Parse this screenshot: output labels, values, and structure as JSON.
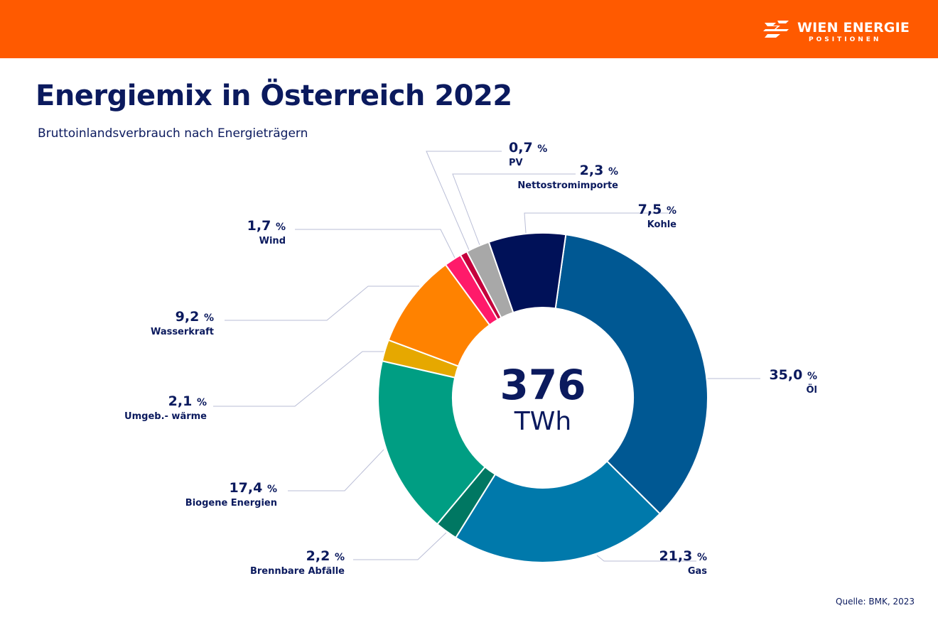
{
  "header": {
    "brand": "WIEN ENERGIE",
    "brand_sub": "POSITIONEN",
    "color": "#ff5a00"
  },
  "title": "Energiemix in Österreich 2022",
  "subtitle": "Bruttoinlandsverbrauch nach Energieträgern",
  "source": "Quelle: BMK, 2023",
  "chart_data": {
    "type": "pie",
    "donut": true,
    "title": "Energiemix in Österreich 2022",
    "center_value": "376",
    "center_unit": "TWh",
    "unit": "%",
    "slices": [
      {
        "name": "Öl",
        "value": 35.0,
        "label": "35,0",
        "color": "#005893"
      },
      {
        "name": "Gas",
        "value": 21.3,
        "label": "21,3",
        "color": "#0079ab"
      },
      {
        "name": "Brennbare Abfälle",
        "value": 2.2,
        "label": "2,2",
        "color": "#007762"
      },
      {
        "name": "Biogene Energien",
        "value": 17.4,
        "label": "17,4",
        "color": "#009e83"
      },
      {
        "name": "Umgeb.- wärme",
        "value": 2.1,
        "label": "2,1",
        "color": "#e6a800"
      },
      {
        "name": "Wasserkraft",
        "value": 9.2,
        "label": "9,2",
        "color": "#ff8200"
      },
      {
        "name": "Wind",
        "value": 1.7,
        "label": "1,7",
        "color": "#ff1a6a"
      },
      {
        "name": "PV",
        "value": 0.7,
        "label": "0,7",
        "color": "#c4003c"
      },
      {
        "name": "Nettostromimporte",
        "value": 2.3,
        "label": "2,3",
        "color": "#a8a8a8"
      },
      {
        "name": "Kohle",
        "value": 7.5,
        "label": "7,5",
        "color": "#001158"
      }
    ]
  }
}
